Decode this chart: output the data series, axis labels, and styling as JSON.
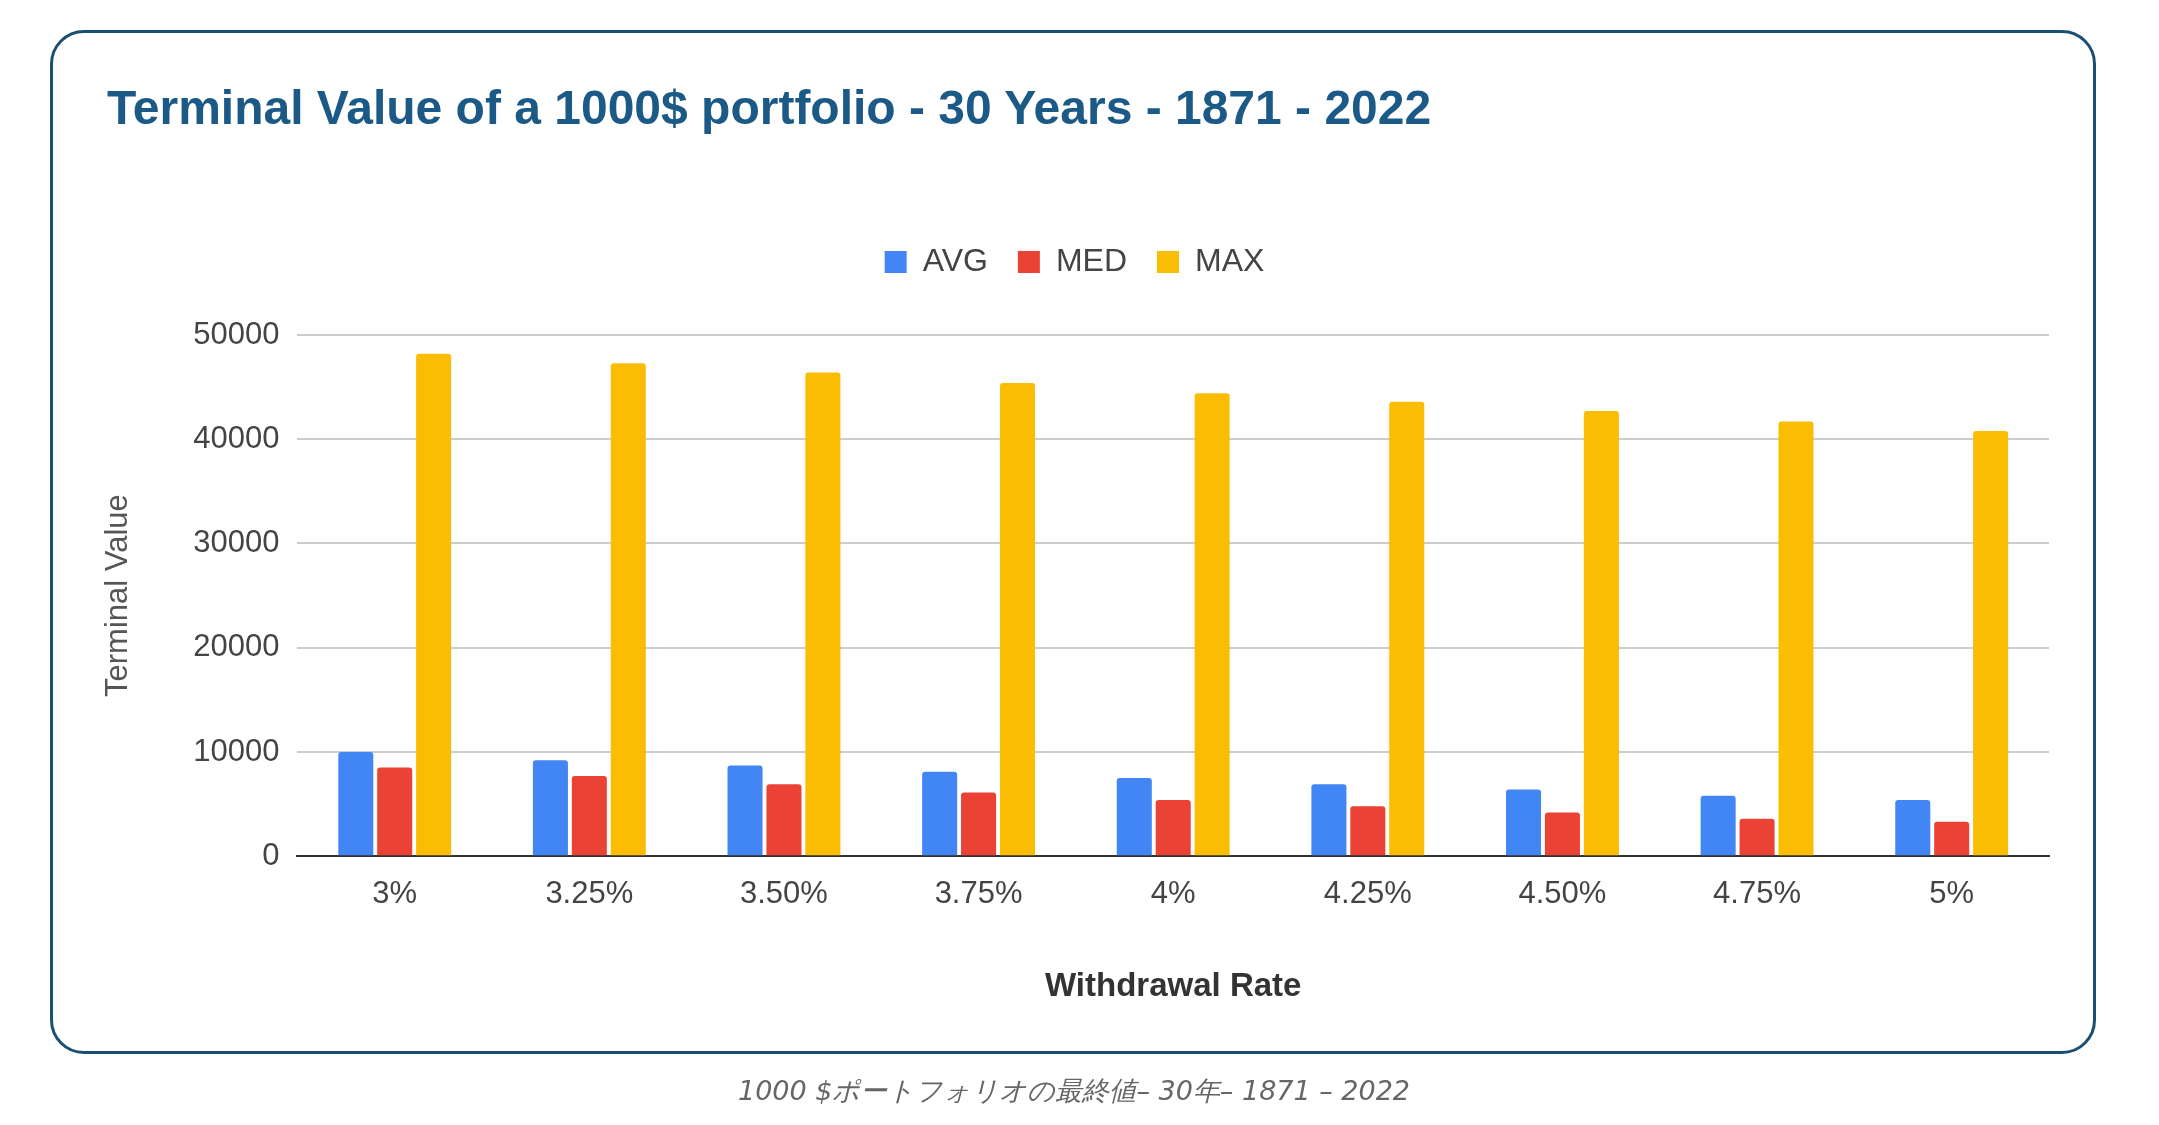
{
  "chart_data": {
    "type": "bar",
    "title": "Terminal Value of a 1000$ portfolio - 30 Years - 1871 - 2022",
    "xlabel": "Withdrawal Rate",
    "ylabel": "Terminal Value",
    "categories": [
      "3%",
      "3.25%",
      "3.50%",
      "3.75%",
      "4%",
      "4.25%",
      "4.50%",
      "4.75%",
      "5%"
    ],
    "series": [
      {
        "name": "AVG",
        "color": "#4285f4",
        "values": [
          10000,
          9200,
          8700,
          8100,
          7500,
          6900,
          6400,
          5800,
          5400
        ]
      },
      {
        "name": "MED",
        "color": "#ea4335",
        "values": [
          8500,
          7700,
          6900,
          6100,
          5400,
          4800,
          4200,
          3600,
          3300
        ]
      },
      {
        "name": "MAX",
        "color": "#fbbc04",
        "values": [
          48200,
          47300,
          46400,
          45400,
          44400,
          43600,
          42700,
          41700,
          40800
        ]
      }
    ],
    "ylim": [
      0,
      50000
    ],
    "yticks": [
      0,
      10000,
      20000,
      30000,
      40000,
      50000
    ],
    "grid": "y",
    "legend": "top",
    "annotations": [
      "1000 $ポートフォリオの最終値– 30年– 1871 – 2022"
    ]
  }
}
